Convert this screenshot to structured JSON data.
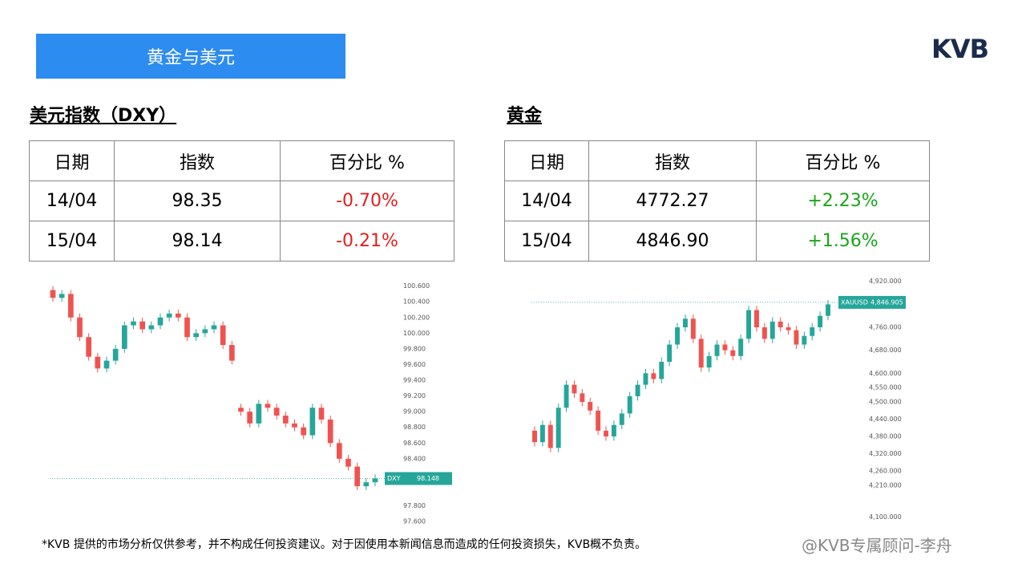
{
  "header": {
    "title": "黄金与美元",
    "logo": "KVB"
  },
  "dxy": {
    "heading": "美元指数（DXY）",
    "table": {
      "columns": [
        "日期",
        "指数",
        "百分比 %"
      ],
      "rows": [
        [
          "14/04",
          "98.35",
          "-0.70%"
        ],
        [
          "15/04",
          "98.14",
          "-0.21%"
        ]
      ]
    },
    "chart_data": {
      "type": "candlestick",
      "up_color": "#26a69a",
      "down_color": "#ef5350",
      "ylim": [
        97.55,
        100.77
      ],
      "yticks": [
        {
          "value": 100.6,
          "label": "100.600"
        },
        {
          "value": 100.4,
          "label": "100.400"
        },
        {
          "value": 100.2,
          "label": "100.200"
        },
        {
          "value": 100,
          "label": "100.000"
        },
        {
          "value": 99.8,
          "label": "99.800"
        },
        {
          "value": 99.6,
          "label": "99.600"
        },
        {
          "value": 99.4,
          "label": "99.400"
        },
        {
          "value": 99.2,
          "label": "99.200"
        },
        {
          "value": 99,
          "label": "99.000"
        },
        {
          "value": 98.8,
          "label": "98.800"
        },
        {
          "value": 98.6,
          "label": "98.600"
        },
        {
          "value": 98.4,
          "label": "98.400"
        },
        {
          "value": 97.8,
          "label": "97.800"
        },
        {
          "value": 97.6,
          "label": "97.600"
        }
      ],
      "price_tag": {
        "name": "DXY",
        "value": 98.148
      },
      "open": [
        100.55,
        100.45,
        100.5,
        100.2,
        99.95,
        99.7,
        99.55,
        99.65,
        99.8,
        100.1,
        100.15,
        100.05,
        100.1,
        100.2,
        100.25,
        100.2,
        99.95,
        100.0,
        100.05,
        100.1,
        99.85,
        99.05,
        99.0,
        98.85,
        99.1,
        99.05,
        98.95,
        98.85,
        98.8,
        98.7,
        99.05,
        98.9,
        98.6,
        98.4,
        98.3,
        98.05,
        98.1
      ],
      "high": [
        100.6,
        100.55,
        100.55,
        100.25,
        100.0,
        99.75,
        99.7,
        99.85,
        100.15,
        100.2,
        100.2,
        100.15,
        100.25,
        100.3,
        100.3,
        100.25,
        100.05,
        100.1,
        100.15,
        100.15,
        99.9,
        99.1,
        99.05,
        99.15,
        99.15,
        99.1,
        99.0,
        98.9,
        98.85,
        99.1,
        99.1,
        98.95,
        98.65,
        98.45,
        98.35,
        98.15,
        98.2
      ],
      "low": [
        100.4,
        100.4,
        100.15,
        99.9,
        99.65,
        99.5,
        99.5,
        99.6,
        99.75,
        100.05,
        100.0,
        100.0,
        100.05,
        100.15,
        100.15,
        99.9,
        99.9,
        99.95,
        100.0,
        99.8,
        99.6,
        98.95,
        98.8,
        98.8,
        99.0,
        98.9,
        98.8,
        98.75,
        98.65,
        98.65,
        98.85,
        98.55,
        98.35,
        98.25,
        98.0,
        98.0,
        98.05
      ],
      "close": [
        100.45,
        100.5,
        100.2,
        99.95,
        99.7,
        99.55,
        99.65,
        99.8,
        100.1,
        100.15,
        100.05,
        100.1,
        100.2,
        100.25,
        100.2,
        99.95,
        100.0,
        100.05,
        100.1,
        99.85,
        99.65,
        99.0,
        98.85,
        99.1,
        99.05,
        98.95,
        98.85,
        98.8,
        98.7,
        99.05,
        98.9,
        98.6,
        98.4,
        98.3,
        98.05,
        98.1,
        98.15
      ]
    }
  },
  "gold": {
    "heading": "黄金",
    "table": {
      "columns": [
        "日期",
        "指数",
        "百分比 %"
      ],
      "rows": [
        [
          "14/04",
          "4772.27",
          "+2.23%"
        ],
        [
          "15/04",
          "4846.90",
          "+1.56%"
        ]
      ]
    },
    "chart_data": {
      "type": "candlestick",
      "up_color": "#26a69a",
      "down_color": "#ef5350",
      "ylim": [
        4070,
        4950
      ],
      "yticks": [
        {
          "value": 4920,
          "label": "4,920.000"
        },
        {
          "value": 4760,
          "label": "4,760.000"
        },
        {
          "value": 4680,
          "label": "4,680.000"
        },
        {
          "value": 4600,
          "label": "4,600.000"
        },
        {
          "value": 4550,
          "label": "4,550.000"
        },
        {
          "value": 4500,
          "label": "4,500.000"
        },
        {
          "value": 4440,
          "label": "4,440.000"
        },
        {
          "value": 4380,
          "label": "4,380.000"
        },
        {
          "value": 4320,
          "label": "4,320.000"
        },
        {
          "value": 4260,
          "label": "4,260.000"
        },
        {
          "value": 4210,
          "label": "4,210.000"
        },
        {
          "value": 4100,
          "label": "4,100.000"
        }
      ],
      "price_tag": {
        "name": "XAUUSD",
        "value": {
          "value": 4846.905,
          "label": "4,846.905"
        }
      },
      "open": [
        4400,
        4360,
        4420,
        4340,
        4480,
        4560,
        4530,
        4500,
        4470,
        4400,
        4380,
        4420,
        4460,
        4520,
        4560,
        4600,
        4580,
        4640,
        4700,
        4760,
        4790,
        4720,
        4620,
        4660,
        4700,
        4680,
        4660,
        4720,
        4820,
        4760,
        4720,
        4780,
        4760,
        4750,
        4700,
        4730,
        4760,
        4800
      ],
      "high": [
        4415,
        4435,
        4435,
        4495,
        4575,
        4575,
        4545,
        4515,
        4485,
        4415,
        4435,
        4475,
        4535,
        4575,
        4615,
        4615,
        4655,
        4715,
        4775,
        4805,
        4805,
        4735,
        4675,
        4715,
        4715,
        4695,
        4735,
        4835,
        4835,
        4775,
        4795,
        4795,
        4775,
        4765,
        4745,
        4775,
        4815,
        4855
      ],
      "low": [
        4345,
        4345,
        4325,
        4325,
        4465,
        4515,
        4485,
        4455,
        4385,
        4365,
        4365,
        4405,
        4445,
        4505,
        4545,
        4565,
        4565,
        4625,
        4685,
        4745,
        4705,
        4605,
        4605,
        4645,
        4665,
        4645,
        4645,
        4705,
        4745,
        4705,
        4705,
        4745,
        4735,
        4685,
        4685,
        4715,
        4745,
        4785
      ],
      "close": [
        4360,
        4420,
        4340,
        4480,
        4560,
        4530,
        4500,
        4470,
        4400,
        4380,
        4420,
        4460,
        4520,
        4560,
        4600,
        4580,
        4640,
        4700,
        4760,
        4790,
        4720,
        4620,
        4660,
        4700,
        4680,
        4660,
        4720,
        4820,
        4760,
        4720,
        4780,
        4760,
        4750,
        4700,
        4730,
        4760,
        4800,
        4840
      ]
    }
  },
  "footer": {
    "disclaimer": "*KVB 提供的市场分析仅供参考，并不构成任何投资建议。对于因使用本新闻信息而造成的任何投资损失，KVB概不负责。",
    "watermark": "@KVB专属顾问-李舟"
  }
}
